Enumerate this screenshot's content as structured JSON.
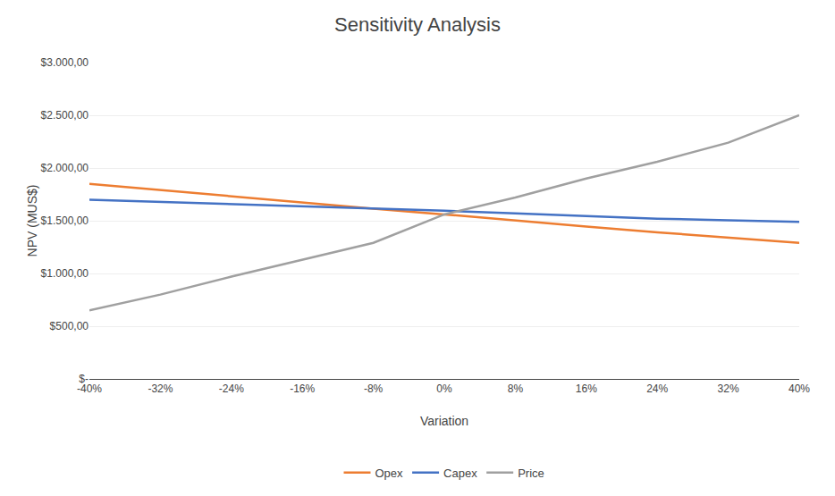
{
  "chart_data": {
    "type": "line",
    "title": "Sensitivity Analysis",
    "x_label": "Variation",
    "y_label": "NPV (MUS$)",
    "x": [
      -40,
      -32,
      -24,
      -16,
      -8,
      0,
      8,
      16,
      24,
      32,
      40
    ],
    "series": [
      {
        "name": "Opex",
        "color": "#ED7D31",
        "values": [
          1850,
          1790,
          1730,
          1670,
          1615,
          1560,
          1500,
          1445,
          1390,
          1340,
          1290
        ]
      },
      {
        "name": "Capex",
        "color": "#4472C4",
        "values": [
          1700,
          1680,
          1660,
          1640,
          1620,
          1595,
          1570,
          1545,
          1520,
          1505,
          1490
        ]
      },
      {
        "name": "Price",
        "color": "#A0A0A0",
        "values": [
          650,
          800,
          970,
          1130,
          1290,
          1560,
          1720,
          1900,
          2060,
          2240,
          2500
        ]
      }
    ],
    "xlim": [
      -40,
      40
    ],
    "xticks": [
      {
        "value": -40,
        "label": "-40%"
      },
      {
        "value": -32,
        "label": "-32%"
      },
      {
        "value": -24,
        "label": "-24%"
      },
      {
        "value": -16,
        "label": "-16%"
      },
      {
        "value": -8,
        "label": "-8%"
      },
      {
        "value": 0,
        "label": "0%"
      },
      {
        "value": 8,
        "label": "8%"
      },
      {
        "value": 16,
        "label": "16%"
      },
      {
        "value": 24,
        "label": "24%"
      },
      {
        "value": 32,
        "label": "32%"
      },
      {
        "value": 40,
        "label": "40%"
      }
    ],
    "ylim": [
      0,
      3000
    ],
    "yticks": [
      {
        "value": 0,
        "label": "$-"
      },
      {
        "value": 500,
        "label": "$500,00"
      },
      {
        "value": 1000,
        "label": "$1.000,00"
      },
      {
        "value": 1500,
        "label": "$1.500,00"
      },
      {
        "value": 2000,
        "label": "$2.000,00"
      },
      {
        "value": 2500,
        "label": "$2.500,00"
      },
      {
        "value": 3000,
        "label": "$3.000,00"
      }
    ],
    "grid": true,
    "legend": "bottom"
  }
}
